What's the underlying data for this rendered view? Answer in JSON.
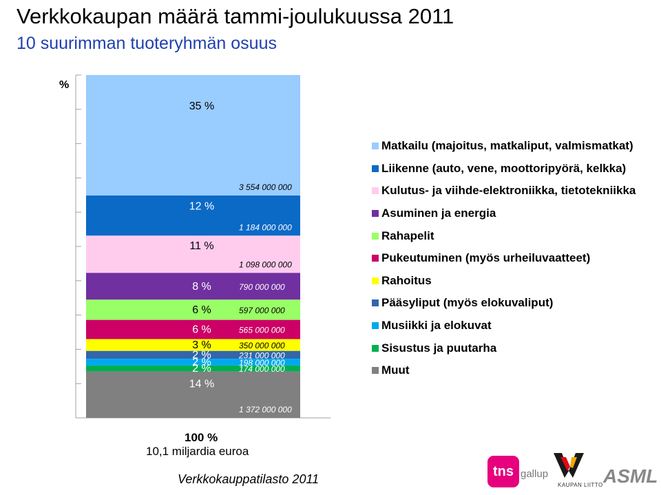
{
  "title": "Verkkokaupan määrä tammi-joulukuussa 2011",
  "subtitle": "10 suurimman tuoteryhmän osuus",
  "chart_data": {
    "type": "bar",
    "subtype": "stacked-100",
    "ylabel": "%",
    "ylim": [
      0,
      100
    ],
    "series": [
      {
        "name": "Matkailu (majoitus, matkaliput, valmismatkat)",
        "percent_label": "35 %",
        "value_label": "3 554 000 000",
        "value": 3554000000,
        "color": "#99ccff"
      },
      {
        "name": "Liikenne (auto, vene, moottoripyörä, kelkka)",
        "percent_label": "12 %",
        "value_label": "1 184 000 000",
        "value": 1184000000,
        "color": "#0a6ac6"
      },
      {
        "name": "Kulutus- ja viihde-elektroniikka, tietotekniikka",
        "percent_label": "11 %",
        "value_label": "1 098 000 000",
        "value": 1098000000,
        "color": "#ffccee"
      },
      {
        "name": "Asuminen ja energia",
        "percent_label": "8 %",
        "value_label": "790 000 000",
        "value": 790000000,
        "color": "#7030a0"
      },
      {
        "name": "Rahapelit",
        "percent_label": "6 %",
        "value_label": "597 000 000",
        "value": 597000000,
        "color": "#99ff66"
      },
      {
        "name": "Pukeutuminen (myös urheiluvaatteet)",
        "percent_label": "6 %",
        "value_label": "565 000 000",
        "value": 565000000,
        "color": "#cc0066"
      },
      {
        "name": "Rahoitus",
        "percent_label": "3 %",
        "value_label": "350 000 000",
        "value": 350000000,
        "color": "#ffff00"
      },
      {
        "name": "Pääsyliput (myös elokuvaliput)",
        "percent_label": "2 %",
        "value_label": "231 000 000",
        "value": 231000000,
        "color": "#3366aa"
      },
      {
        "name": "Musiikki ja elokuvat",
        "percent_label": "2 %",
        "value_label": "198 000 000",
        "value": 198000000,
        "color": "#00a8f0"
      },
      {
        "name": "Sisustus ja puutarha",
        "percent_label": "2 %",
        "value_label": "174 000 000",
        "value": 174000000,
        "color": "#00b050"
      },
      {
        "name": "Muut",
        "percent_label": "14 %",
        "value_label": "1 372 000 000",
        "value": 1372000000,
        "color": "#808080"
      }
    ],
    "total_label": "100 %",
    "total_sublabel": "10,1 miljardia euroa",
    "legend_position": "right"
  },
  "source": "Verkkokauppatilasto 2011",
  "logos": {
    "tns": "tns",
    "gallup": "gallup",
    "kaupan_liitto": "KAUPAN LIITTO",
    "asml": "ASML"
  }
}
